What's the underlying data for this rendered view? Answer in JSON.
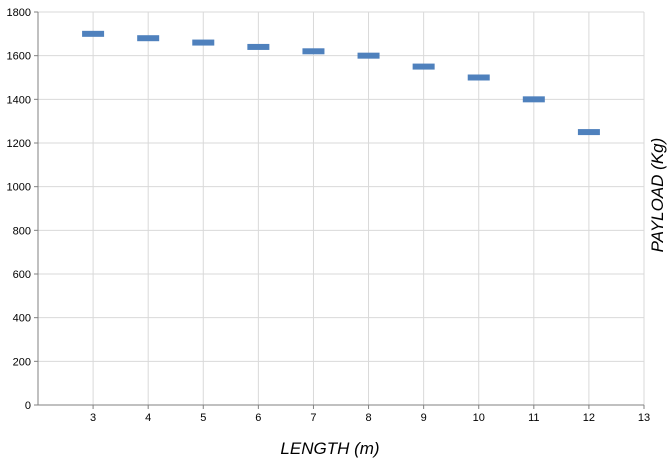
{
  "chart_data": {
    "type": "scatter",
    "title": "",
    "xlabel": "LENGTH (m)",
    "ylabel": "PAYLOAD (Kg)",
    "xlim": [
      2,
      13
    ],
    "ylim": [
      0,
      1800
    ],
    "x_ticks": [
      3,
      4,
      5,
      6,
      7,
      8,
      9,
      10,
      11,
      12,
      13
    ],
    "y_ticks": [
      0,
      200,
      400,
      600,
      800,
      1000,
      1200,
      1400,
      1600,
      1800
    ],
    "grid": true,
    "legend": "none",
    "marker": "dash",
    "color": "#4f81bd",
    "points": [
      {
        "x": 3,
        "y": 1700
      },
      {
        "x": 4,
        "y": 1680
      },
      {
        "x": 5,
        "y": 1660
      },
      {
        "x": 6,
        "y": 1640
      },
      {
        "x": 7,
        "y": 1620
      },
      {
        "x": 8,
        "y": 1600
      },
      {
        "x": 9,
        "y": 1550
      },
      {
        "x": 10,
        "y": 1500
      },
      {
        "x": 11,
        "y": 1400
      },
      {
        "x": 12,
        "y": 1250
      }
    ]
  }
}
